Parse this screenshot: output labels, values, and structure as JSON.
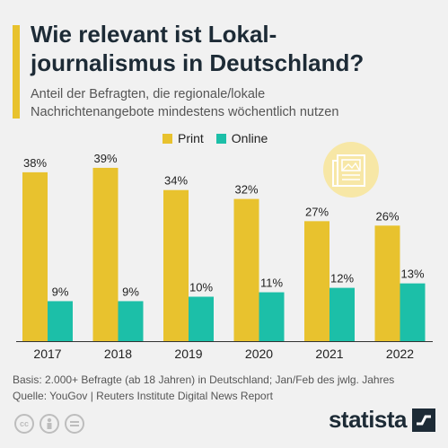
{
  "header": {
    "title_line1": "Wie relevant ist Lokal-",
    "title_line2": "journalismus in Deutschland?",
    "subtitle_line1": "Anteil der Befragten, die regionale/lokale",
    "subtitle_line2": "Nachrichtenangebote mindestens wöchentlich nutzen"
  },
  "icons": {
    "newspaper": "newspaper-icon",
    "license": [
      "cc-icon",
      "attribution-icon",
      "no-derivatives-icon"
    ],
    "brand_logo": "statista-logo-icon"
  },
  "colors": {
    "print": "#e8c22e",
    "online": "#1cbfa8",
    "accent": "#e8c22e"
  },
  "chart_data": {
    "type": "bar",
    "categories": [
      "2017",
      "2018",
      "2019",
      "2020",
      "2021",
      "2022"
    ],
    "series": [
      {
        "name": "Print",
        "values": [
          38,
          39,
          34,
          32,
          27,
          26
        ],
        "labels": [
          "38%",
          "39%",
          "34%",
          "32%",
          "27%",
          "26%"
        ]
      },
      {
        "name": "Online",
        "values": [
          9,
          9,
          10,
          11,
          12,
          13
        ],
        "labels": [
          "9%",
          "9%",
          "10%",
          "11%",
          "12%",
          "13%"
        ]
      }
    ],
    "legend_position": "top-center",
    "grid": false
  },
  "footer": {
    "basis": "Basis: 2.000+ Befragte (ab 18 Jahren) in Deutschland; Jan/Feb des jwlg. Jahres",
    "source": "Quelle: YouGov | Reuters Institute Digital News Report"
  },
  "brand": {
    "name": "statista",
    "cc_label": "cc"
  }
}
